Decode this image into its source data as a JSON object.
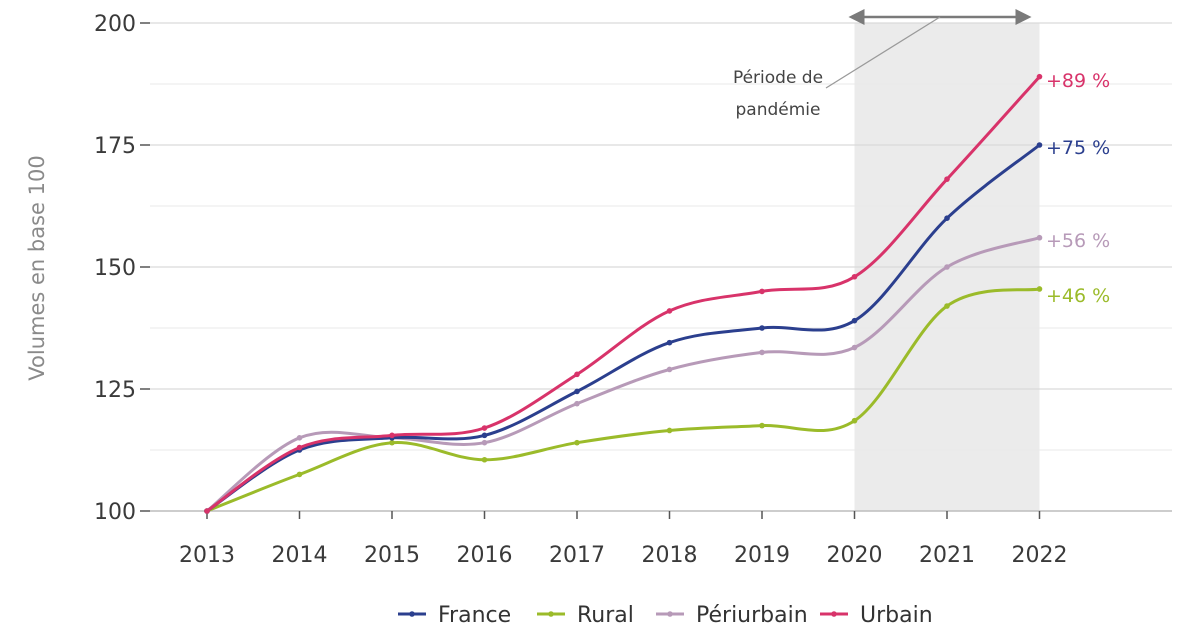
{
  "chart_data": {
    "type": "line",
    "ylabel": "Volumes en base 100",
    "xlabel": "",
    "x": [
      "2013",
      "2014",
      "2015",
      "2016",
      "2017",
      "2018",
      "2019",
      "2020",
      "2021",
      "2022"
    ],
    "ylim": [
      100,
      200
    ],
    "yticks": [
      "100",
      "125",
      "150",
      "175",
      "200"
    ],
    "grid": true,
    "legend_position": "bottom",
    "series": [
      {
        "name": "France",
        "color": "#2b3f8e",
        "values": [
          100,
          112.5,
          115,
          115.5,
          124.5,
          134.5,
          137.5,
          139,
          160,
          175
        ],
        "end_label": "+75 %"
      },
      {
        "name": "Rural",
        "color": "#9bbb2a",
        "values": [
          100,
          107.5,
          114,
          110.5,
          114,
          116.5,
          117.5,
          118.5,
          142,
          145.5
        ],
        "end_label": "+46 %"
      },
      {
        "name": "Périurbain",
        "color": "#b79ab8",
        "values": [
          100,
          115,
          115,
          114,
          122,
          129,
          132.5,
          133.5,
          150,
          156
        ],
        "end_label": "+56 %"
      },
      {
        "name": "Urbain",
        "color": "#d8336a",
        "values": [
          100,
          113,
          115.5,
          117,
          128,
          141,
          145,
          148,
          168,
          189
        ],
        "end_label": "+89 %"
      }
    ],
    "annotation": {
      "text_line1": "Période de",
      "text_line2": "pandémie",
      "x_start": "2020",
      "x_end": "2022"
    }
  }
}
